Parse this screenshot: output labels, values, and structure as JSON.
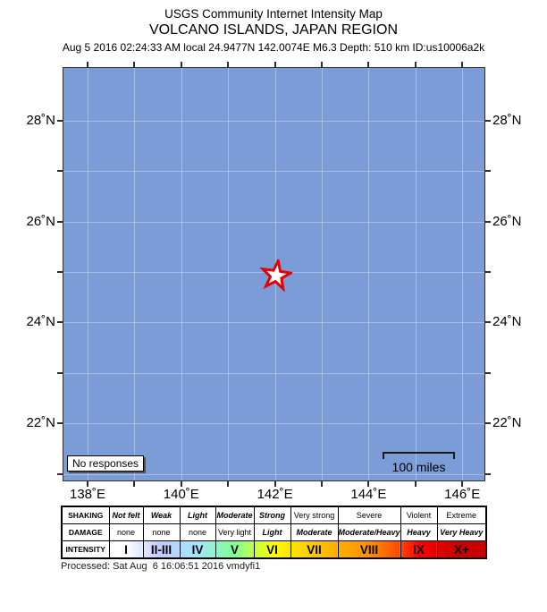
{
  "header": {
    "title": "USGS Community Internet Intensity Map",
    "subtitle": "VOLCANO ISLANDS, JAPAN REGION",
    "event_info": "Aug 5 2016 02:24:33 AM local 24.9477N 142.0074E M6.3 Depth: 510 km ID:us10006a2k"
  },
  "map": {
    "no_responses_label": "No responses",
    "scale_bar_label": "100 miles",
    "epicenter": {
      "lat": 24.9477,
      "lon": 142.0074
    },
    "axis": {
      "lat_ticks": [
        {
          "value": 28,
          "label": "28˚N"
        },
        {
          "value": 27,
          "label": ""
        },
        {
          "value": 26,
          "label": "26˚N"
        },
        {
          "value": 25,
          "label": ""
        },
        {
          "value": 24,
          "label": "24˚N"
        },
        {
          "value": 23,
          "label": ""
        },
        {
          "value": 22,
          "label": "22˚N"
        },
        {
          "value": 21,
          "label": ""
        }
      ],
      "lon_ticks": [
        {
          "value": 138,
          "label": "138˚E"
        },
        {
          "value": 139,
          "label": ""
        },
        {
          "value": 140,
          "label": "140˚E"
        },
        {
          "value": 141,
          "label": ""
        },
        {
          "value": 142,
          "label": "142˚E"
        },
        {
          "value": 143,
          "label": ""
        },
        {
          "value": 144,
          "label": "144˚E"
        },
        {
          "value": 145,
          "label": ""
        },
        {
          "value": 146,
          "label": "146˚E"
        }
      ]
    },
    "colors": {
      "ocean": "#7B9CD6",
      "grid_line": "rgba(255,255,255,0.32)",
      "border": "#2E2E2E",
      "star_stroke": "#E60000",
      "star_fill": "#FFFFFF"
    }
  },
  "legend": {
    "row_labels": {
      "shaking": "SHAKING",
      "damage": "DAMAGE",
      "intensity": "INTENSITY"
    },
    "columns": [
      {
        "shaking": "Not felt",
        "damage": "none",
        "intensity": "I",
        "color": "#FFFFFF"
      },
      {
        "shaking": "Weak",
        "damage": "none",
        "intensity": "II-III",
        "color": "#BFCCFF"
      },
      {
        "shaking": "Light",
        "damage": "none",
        "intensity": "IV",
        "color": "#A0E6FF"
      },
      {
        "shaking": "Moderate",
        "damage": "Very light",
        "intensity": "V",
        "color": "#80FF93"
      },
      {
        "shaking": "Strong",
        "damage": "Light",
        "intensity": "VI",
        "color": "#FFFF00"
      },
      {
        "shaking": "Very strong",
        "damage": "Moderate",
        "intensity": "VII",
        "color": "#FFC800"
      },
      {
        "shaking": "Severe",
        "damage": "Moderate/Heavy",
        "intensity": "VIII",
        "color": "#FF9100"
      },
      {
        "shaking": "Violent",
        "damage": "Heavy",
        "intensity": "IX",
        "color": "#FF0000"
      },
      {
        "shaking": "Extreme",
        "damage": "Very Heavy",
        "intensity": "X+",
        "color": "#C80000"
      }
    ]
  },
  "footer": {
    "processed": "Processed: Sat Aug  6 16:06:51 2016 vmdyfi1"
  }
}
